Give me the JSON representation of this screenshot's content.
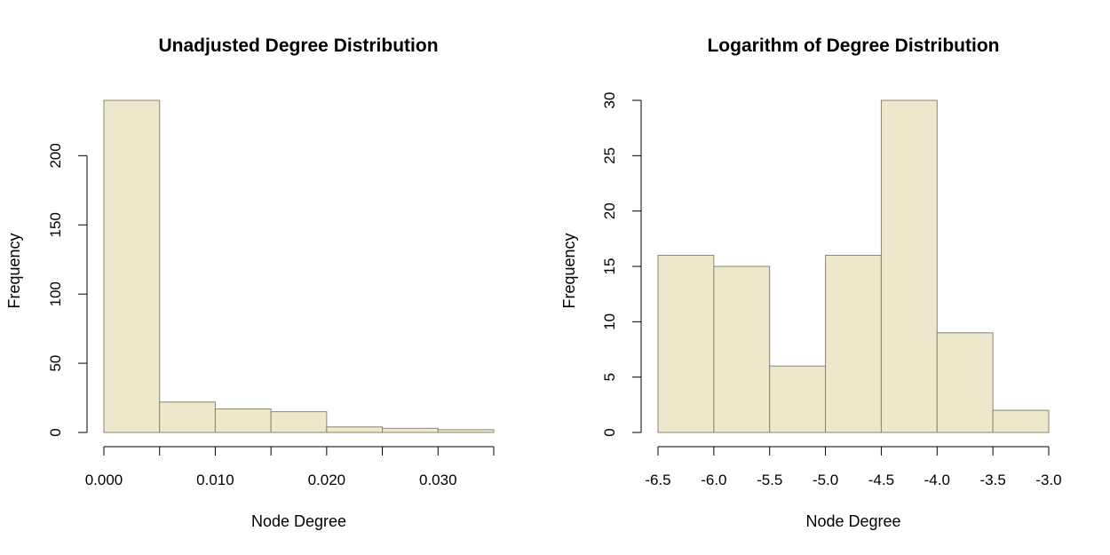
{
  "colors": {
    "bar_fill": "#ede7cb",
    "bar_stroke": "#8a8570",
    "axis": "#000000"
  },
  "chart_data": [
    {
      "type": "bar",
      "subtype": "histogram",
      "title": "Unadjusted Degree Distribution",
      "xlabel": "Node Degree",
      "ylabel": "Frequency",
      "bin_edges": [
        0.0,
        0.005,
        0.01,
        0.015,
        0.02,
        0.025,
        0.03,
        0.035
      ],
      "values": [
        240,
        22,
        17,
        15,
        4,
        3,
        2
      ],
      "xlim": [
        0.0,
        0.035
      ],
      "ylim": [
        0,
        240
      ],
      "xticks": [
        0.0,
        0.005,
        0.01,
        0.015,
        0.02,
        0.025,
        0.03,
        0.035
      ],
      "xtick_labels": [
        "0.000",
        "",
        "0.010",
        "",
        "0.020",
        "",
        "0.030",
        ""
      ],
      "yticks": [
        0,
        50,
        100,
        150,
        200
      ],
      "ytick_labels": [
        "0",
        "50",
        "100",
        "150",
        "200"
      ],
      "grid": false,
      "legend": "none"
    },
    {
      "type": "bar",
      "subtype": "histogram",
      "title": "Logarithm of Degree Distribution",
      "xlabel": "Node Degree",
      "ylabel": "Frequency",
      "bin_edges": [
        -6.5,
        -6.0,
        -5.5,
        -5.0,
        -4.5,
        -4.0,
        -3.5,
        -3.0
      ],
      "values": [
        16,
        15,
        6,
        16,
        30,
        9,
        2
      ],
      "xlim": [
        -6.5,
        -3.0
      ],
      "ylim": [
        0,
        30
      ],
      "xticks": [
        -6.5,
        -6.0,
        -5.5,
        -5.0,
        -4.5,
        -4.0,
        -3.5,
        -3.0
      ],
      "xtick_labels": [
        "-6.5",
        "-6.0",
        "-5.5",
        "-5.0",
        "-4.5",
        "-4.0",
        "-3.5",
        "-3.0"
      ],
      "yticks": [
        0,
        5,
        10,
        15,
        20,
        25,
        30
      ],
      "ytick_labels": [
        "0",
        "5",
        "10",
        "15",
        "20",
        "25",
        "30"
      ],
      "grid": false,
      "legend": "none"
    }
  ]
}
